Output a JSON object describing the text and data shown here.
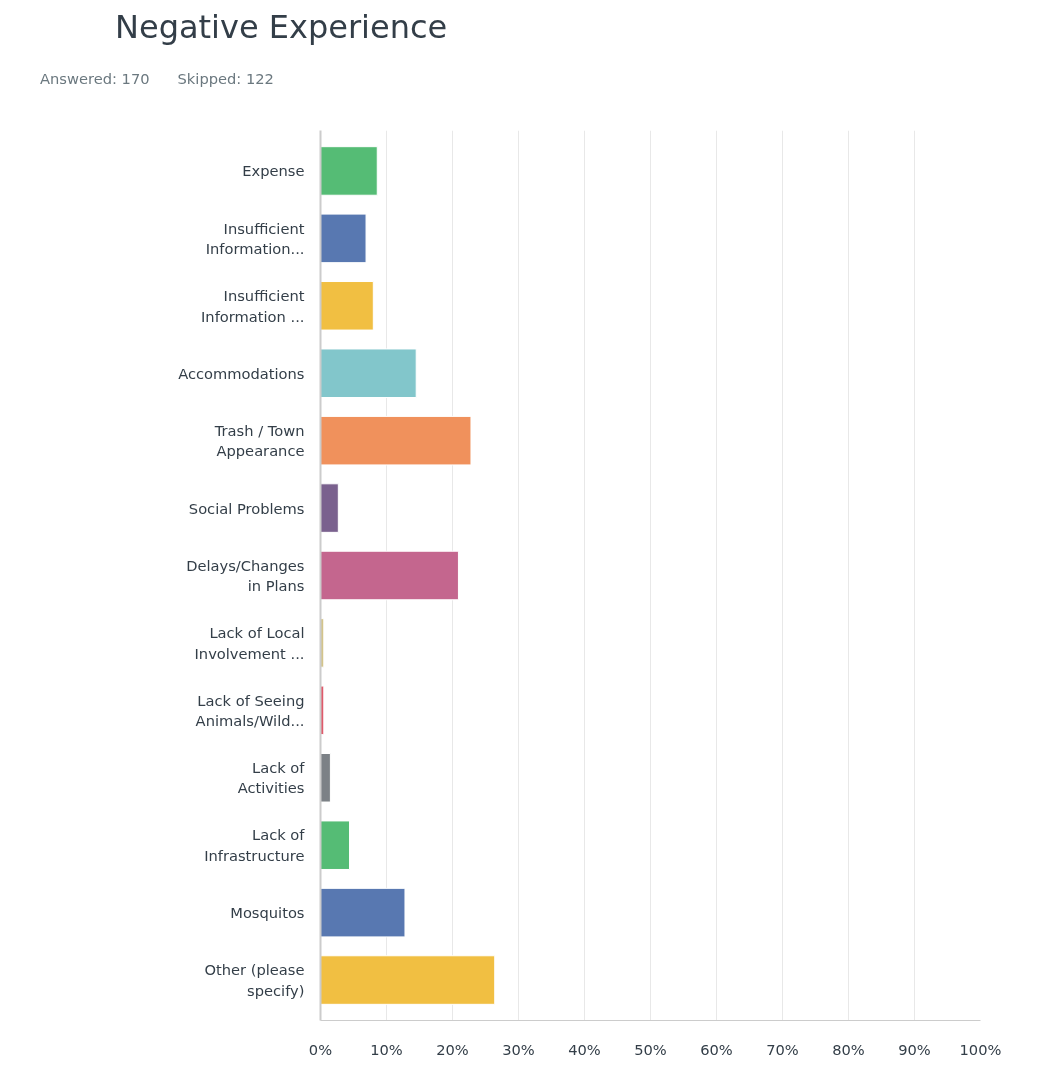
{
  "chart_data": {
    "type": "bar",
    "orientation": "horizontal",
    "title": "Negative Experience",
    "annotations": [
      "Answered: 170",
      "Skipped: 122"
    ],
    "categories": [
      "Expense",
      "Insufficient Information...",
      "Insufficient Information ...",
      "Accommodations",
      "Trash / Town Appearance",
      "Social Problems",
      "Delays/Changes in Plans",
      "Lack of Local Involvement ...",
      "Lack of Seeing Animals/Wild...",
      "Lack of Activities",
      "Lack of Infrastructure",
      "Mosquitos",
      "Other (please specify)"
    ],
    "values": [
      8.6,
      6.9,
      8.0,
      14.5,
      22.8,
      2.7,
      20.9,
      0.5,
      0.5,
      1.5,
      4.4,
      12.8,
      26.4
    ],
    "colors": [
      "#55bc75",
      "#5878b1",
      "#f1bf42",
      "#82c6cb",
      "#f0915c",
      "#7a618e",
      "#c4668e",
      "#d3c48a",
      "#df5a6b",
      "#7c8186",
      "#55bc75",
      "#5878b1",
      "#f1bf42"
    ],
    "xlim": [
      0,
      100
    ],
    "xticks": [
      {
        "value": 0,
        "label": "0%"
      },
      {
        "value": 10,
        "label": "10%"
      },
      {
        "value": 20,
        "label": "20%"
      },
      {
        "value": 30,
        "label": "30%"
      },
      {
        "value": 40,
        "label": "40%"
      },
      {
        "value": 50,
        "label": "50%"
      },
      {
        "value": 60,
        "label": "60%"
      },
      {
        "value": 70,
        "label": "70%"
      },
      {
        "value": 80,
        "label": "80%"
      },
      {
        "value": 90,
        "label": "90%"
      },
      {
        "value": 100,
        "label": "100%"
      }
    ],
    "grid": "x"
  }
}
